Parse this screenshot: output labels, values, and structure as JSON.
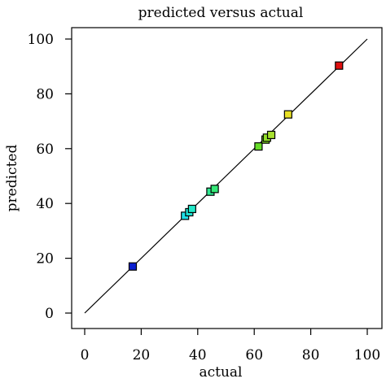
{
  "chart_data": {
    "type": "scatter",
    "title": "predicted versus actual",
    "xlabel": "actual",
    "ylabel": "predicted",
    "xlim": [
      0,
      100
    ],
    "ylim": [
      0,
      100
    ],
    "xticks": [
      0,
      20,
      40,
      60,
      80,
      100
    ],
    "yticks": [
      0,
      20,
      40,
      60,
      80,
      100
    ],
    "grid": false,
    "reference_line": {
      "from": [
        0,
        0
      ],
      "to": [
        100,
        100
      ]
    },
    "points": [
      {
        "x": 17,
        "y": 17,
        "color": "#0a1fd0"
      },
      {
        "x": 35.5,
        "y": 35.5,
        "color": "#1fe0e8"
      },
      {
        "x": 37,
        "y": 36.8,
        "color": "#1fe8d8"
      },
      {
        "x": 38,
        "y": 38,
        "color": "#22e8c8"
      },
      {
        "x": 44.5,
        "y": 44.3,
        "color": "#2ee890"
      },
      {
        "x": 46,
        "y": 45.3,
        "color": "#35e878"
      },
      {
        "x": 61.5,
        "y": 60.8,
        "color": "#66dd28"
      },
      {
        "x": 64,
        "y": 63.3,
        "color": "#88e028"
      },
      {
        "x": 64.5,
        "y": 64,
        "color": "#92e02a"
      },
      {
        "x": 66,
        "y": 65,
        "color": "#a8e030"
      },
      {
        "x": 72,
        "y": 72.5,
        "color": "#e8e025"
      },
      {
        "x": 90,
        "y": 90.3,
        "color": "#e01010"
      }
    ]
  }
}
